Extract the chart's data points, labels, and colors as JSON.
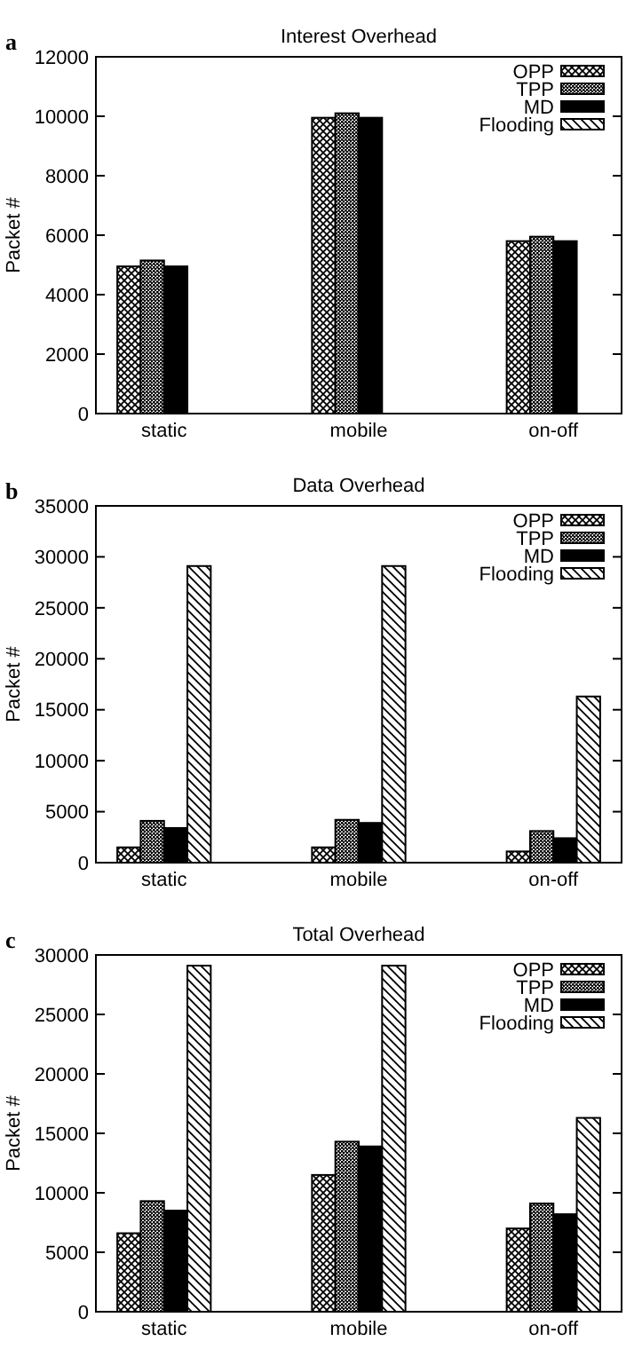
{
  "chart_data": [
    {
      "type": "bar",
      "title": "Interest Overhead",
      "ylabel": "Packet #",
      "annotations": [
        "a"
      ],
      "categories": [
        "static",
        "mobile",
        "on-off"
      ],
      "legend": "top right",
      "grid": false,
      "ylim": [
        0,
        12000
      ],
      "yticks": [
        0,
        2000,
        4000,
        6000,
        8000,
        10000,
        12000
      ],
      "series": [
        {
          "name": "OPP",
          "color": "#000000",
          "values": [
            4950,
            9950,
            5800
          ]
        },
        {
          "name": "TPP",
          "color": "#000000",
          "values": [
            5150,
            10100,
            5950
          ]
        },
        {
          "name": "MD",
          "color": "#000000",
          "values": [
            4950,
            9950,
            5800
          ]
        },
        {
          "name": "Flooding",
          "color": "#000000",
          "values": [
            null,
            null,
            null
          ]
        }
      ]
    },
    {
      "type": "bar",
      "title": "Data Overhead",
      "ylabel": "Packet #",
      "annotations": [
        "b"
      ],
      "categories": [
        "static",
        "mobile",
        "on-off"
      ],
      "legend": "top right",
      "grid": false,
      "ylim": [
        0,
        35000
      ],
      "yticks": [
        0,
        5000,
        10000,
        15000,
        20000,
        25000,
        30000,
        35000
      ],
      "series": [
        {
          "name": "OPP",
          "color": "#000000",
          "values": [
            1500,
            1500,
            1100
          ]
        },
        {
          "name": "TPP",
          "color": "#000000",
          "values": [
            4100,
            4200,
            3100
          ]
        },
        {
          "name": "MD",
          "color": "#000000",
          "values": [
            3400,
            3900,
            2400
          ]
        },
        {
          "name": "Flooding",
          "color": "#000000",
          "values": [
            29100,
            29100,
            16300
          ]
        }
      ]
    },
    {
      "type": "bar",
      "title": "Total Overhead",
      "ylabel": "Packet #",
      "annotations": [
        "c"
      ],
      "categories": [
        "static",
        "mobile",
        "on-off"
      ],
      "legend": "top right",
      "grid": false,
      "ylim": [
        0,
        30000
      ],
      "yticks": [
        0,
        5000,
        10000,
        15000,
        20000,
        25000,
        30000
      ],
      "series": [
        {
          "name": "OPP",
          "color": "#000000",
          "values": [
            6600,
            11500,
            7000
          ]
        },
        {
          "name": "TPP",
          "color": "#000000",
          "values": [
            9300,
            14300,
            9100
          ]
        },
        {
          "name": "MD",
          "color": "#000000",
          "values": [
            8500,
            13900,
            8200
          ]
        },
        {
          "name": "Flooding",
          "color": "#000000",
          "values": [
            29100,
            29100,
            16300
          ]
        }
      ]
    }
  ]
}
